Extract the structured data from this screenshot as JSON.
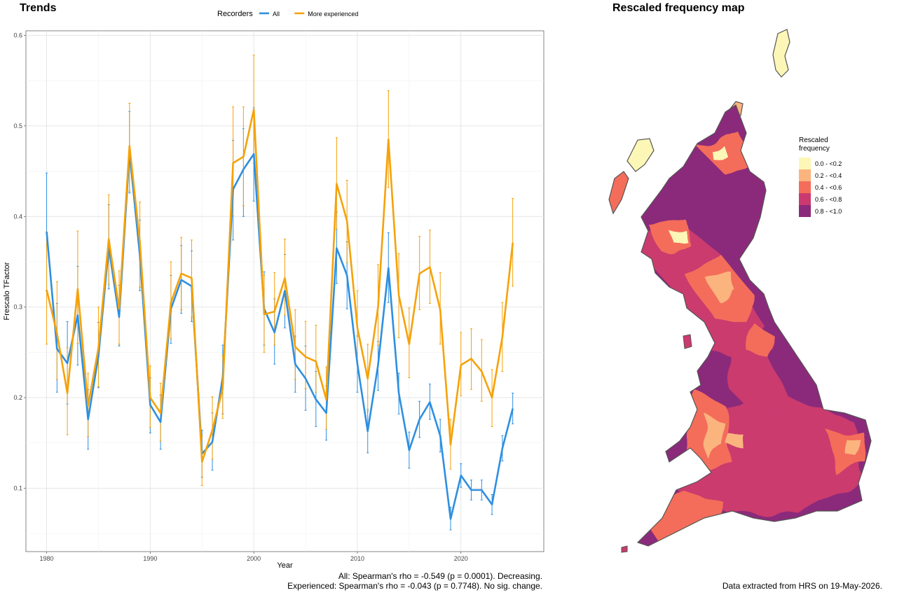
{
  "trends_panel": {
    "title": "Trends"
  },
  "map_panel": {
    "title": "Rescaled frequency map"
  },
  "chart_data": {
    "type": "line",
    "title": "Trends",
    "xlabel": "Year",
    "ylabel": "Frescalo TFactor",
    "xlim": [
      1978,
      2028
    ],
    "ylim": [
      0.03,
      0.605
    ],
    "x_ticks": [
      1980,
      1990,
      2000,
      2010,
      2020
    ],
    "y_ticks": [
      0.1,
      0.2,
      0.3,
      0.4,
      0.5,
      0.6
    ],
    "grid": true,
    "legend": {
      "title": "Recorders",
      "position": "top"
    },
    "x": [
      1980,
      1981,
      1982,
      1983,
      1984,
      1985,
      1986,
      1987,
      1988,
      1989,
      1990,
      1991,
      1992,
      1993,
      1994,
      1995,
      1996,
      1997,
      1998,
      1999,
      2000,
      2001,
      2002,
      2003,
      2004,
      2005,
      2006,
      2007,
      2008,
      2009,
      2010,
      2011,
      2012,
      2013,
      2014,
      2015,
      2016,
      2017,
      2018,
      2019,
      2020,
      2021,
      2022,
      2023,
      2024,
      2025
    ],
    "series": [
      {
        "name": "All",
        "color": "#2E8FE0",
        "values": [
          0.383,
          0.254,
          0.238,
          0.291,
          0.176,
          0.246,
          0.366,
          0.289,
          0.471,
          0.357,
          0.192,
          0.173,
          0.298,
          0.33,
          0.323,
          0.138,
          0.151,
          0.222,
          0.43,
          0.452,
          0.469,
          0.298,
          0.272,
          0.318,
          0.237,
          0.221,
          0.198,
          0.183,
          0.365,
          0.335,
          0.237,
          0.163,
          0.236,
          0.343,
          0.205,
          0.142,
          0.176,
          0.195,
          0.158,
          0.066,
          0.114,
          0.098,
          0.098,
          0.082,
          0.144,
          0.188
        ],
        "lower": [
          0.318,
          0.206,
          0.193,
          0.236,
          0.143,
          0.211,
          0.32,
          0.257,
          0.426,
          0.318,
          0.161,
          0.143,
          0.26,
          0.293,
          0.284,
          0.112,
          0.12,
          0.182,
          0.374,
          0.4,
          0.417,
          0.258,
          0.237,
          0.277,
          0.206,
          0.186,
          0.168,
          0.153,
          0.326,
          0.298,
          0.206,
          0.139,
          0.208,
          0.305,
          0.182,
          0.122,
          0.156,
          0.176,
          0.14,
          0.054,
          0.101,
          0.087,
          0.087,
          0.071,
          0.13,
          0.171
        ],
        "upper": [
          0.448,
          0.304,
          0.284,
          0.345,
          0.209,
          0.283,
          0.413,
          0.324,
          0.516,
          0.396,
          0.222,
          0.203,
          0.335,
          0.368,
          0.362,
          0.164,
          0.183,
          0.258,
          0.484,
          0.497,
          0.52,
          0.339,
          0.309,
          0.358,
          0.268,
          0.257,
          0.229,
          0.213,
          0.405,
          0.372,
          0.268,
          0.187,
          0.262,
          0.382,
          0.227,
          0.162,
          0.196,
          0.215,
          0.176,
          0.079,
          0.127,
          0.109,
          0.109,
          0.093,
          0.158,
          0.205
        ]
      },
      {
        "name": "More experienced",
        "color": "#F5A20A",
        "values": [
          0.319,
          0.271,
          0.205,
          0.32,
          0.191,
          0.255,
          0.375,
          0.298,
          0.478,
          0.372,
          0.2,
          0.183,
          0.305,
          0.337,
          0.332,
          0.129,
          0.164,
          0.21,
          0.459,
          0.466,
          0.518,
          0.292,
          0.295,
          0.332,
          0.256,
          0.245,
          0.24,
          0.198,
          0.436,
          0.395,
          0.277,
          0.221,
          0.3,
          0.485,
          0.313,
          0.259,
          0.337,
          0.344,
          0.297,
          0.148,
          0.236,
          0.243,
          0.229,
          0.2,
          0.267,
          0.371
        ],
        "lower": [
          0.259,
          0.22,
          0.159,
          0.26,
          0.157,
          0.212,
          0.325,
          0.259,
          0.428,
          0.322,
          0.167,
          0.152,
          0.265,
          0.297,
          0.289,
          0.103,
          0.132,
          0.177,
          0.401,
          0.412,
          0.459,
          0.25,
          0.258,
          0.291,
          0.22,
          0.21,
          0.206,
          0.165,
          0.386,
          0.349,
          0.238,
          0.185,
          0.258,
          0.432,
          0.266,
          0.222,
          0.297,
          0.304,
          0.259,
          0.121,
          0.202,
          0.209,
          0.196,
          0.168,
          0.229,
          0.323
        ],
        "upper": [
          0.383,
          0.328,
          0.255,
          0.384,
          0.227,
          0.3,
          0.424,
          0.34,
          0.525,
          0.416,
          0.235,
          0.216,
          0.35,
          0.377,
          0.374,
          0.158,
          0.201,
          0.247,
          0.521,
          0.521,
          0.578,
          0.335,
          0.338,
          0.375,
          0.297,
          0.284,
          0.28,
          0.234,
          0.487,
          0.44,
          0.318,
          0.259,
          0.347,
          0.539,
          0.359,
          0.299,
          0.378,
          0.385,
          0.338,
          0.176,
          0.272,
          0.276,
          0.264,
          0.231,
          0.305,
          0.42
        ]
      }
    ],
    "annotations": [
      "All: Spearman's rho = -0.549 (p = 0.0001). Decreasing.",
      "Experienced: Spearman's rho = -0.043 (p = 0.7748). No sig. change."
    ]
  },
  "map_legend": {
    "title": "Rescaled frequency",
    "items": [
      {
        "label": "0.0 - <0.2",
        "color": "#FCF7B6"
      },
      {
        "label": "0.2 - <0.4",
        "color": "#FBB47E"
      },
      {
        "label": "0.4 - <0.6",
        "color": "#F46D5A"
      },
      {
        "label": "0.6 - <0.8",
        "color": "#CB3A6E"
      },
      {
        "label": "0.8 - <1.0",
        "color": "#8B2A7B"
      }
    ]
  },
  "footer": {
    "data_extracted": "Data extracted from HRS on 19-May-2026."
  }
}
